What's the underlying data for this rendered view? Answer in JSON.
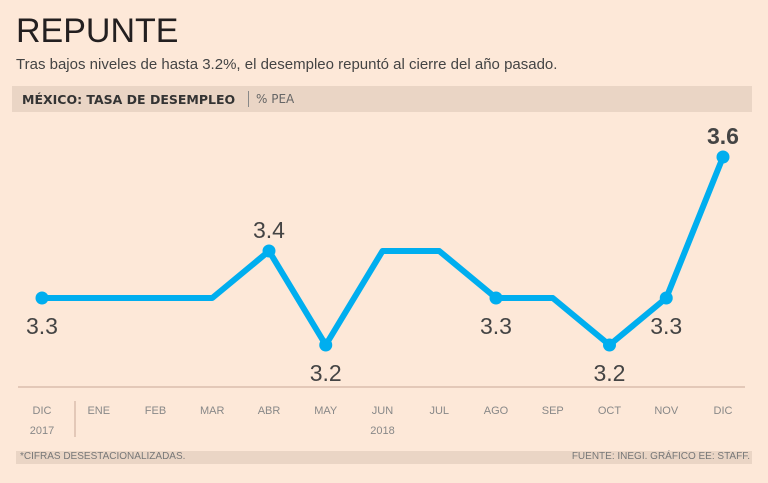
{
  "header": {
    "title": "REPUNTE",
    "subtitle": "Tras bajos niveles de hasta 3.2%, el desempleo repuntó al cierre del año pasado.",
    "chart_label": "MÉXICO: TASA DE DESEMPLEO",
    "unit": "% PEA"
  },
  "footer": {
    "note": "*CIFRAS DESESTACIONALIZADAS.",
    "source": "FUENTE: INEGI. GRÁFICO EE: STAFF."
  },
  "chart_data": {
    "type": "line",
    "categories": [
      "DIC",
      "ENE",
      "FEB",
      "MAR",
      "ABR",
      "MAY",
      "JUN",
      "JUL",
      "AGO",
      "SEP",
      "OCT",
      "NOV",
      "DIC"
    ],
    "year_labels": [
      {
        "label": "2017",
        "at": 0
      },
      {
        "label": "2018",
        "at": 6
      }
    ],
    "series": [
      {
        "values": [
          3.3,
          3.3,
          3.3,
          3.3,
          3.4,
          3.2,
          3.4,
          3.4,
          3.3,
          3.3,
          3.2,
          3.3,
          3.6
        ],
        "color": "#00aeef"
      }
    ],
    "data_labels": [
      {
        "index": 0,
        "text": "3.3",
        "position": "below"
      },
      {
        "index": 4,
        "text": "3.4",
        "position": "above"
      },
      {
        "index": 5,
        "text": "3.2",
        "position": "below"
      },
      {
        "index": 8,
        "text": "3.3",
        "position": "below"
      },
      {
        "index": 10,
        "text": "3.2",
        "position": "below"
      },
      {
        "index": 11,
        "text": "3.3",
        "position": "below"
      },
      {
        "index": 12,
        "text": "3.6",
        "position": "above",
        "bold": true
      }
    ],
    "ylabel": "% PEA",
    "grid": false
  }
}
